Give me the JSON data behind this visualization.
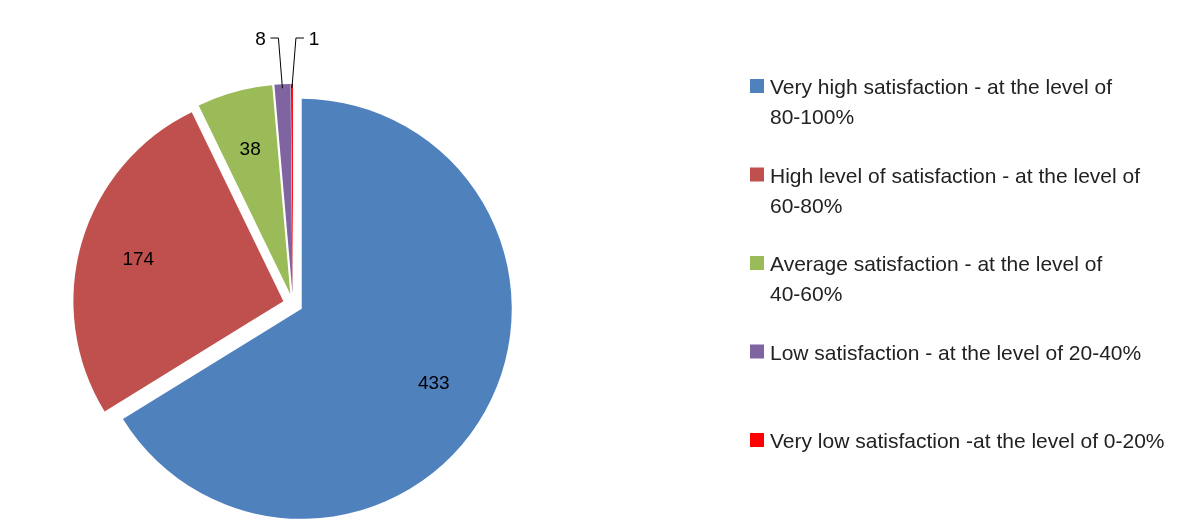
{
  "chart_data": {
    "type": "pie",
    "categories": [
      "Very high satisfaction - at the level of 80-100%",
      "High level of satisfaction - at the level of 60-80%",
      "Average satisfaction - at the level of 40-60%",
      "Low satisfaction - at the level of 20-40%",
      "Very low satisfaction -at the level of 0-20%"
    ],
    "values": [
      433,
      174,
      38,
      8,
      1
    ],
    "colors": [
      "#4f81bd",
      "#c0504d",
      "#9bbb59",
      "#8064a2",
      "#ff0000"
    ],
    "data_labels": true,
    "legend": "right"
  }
}
